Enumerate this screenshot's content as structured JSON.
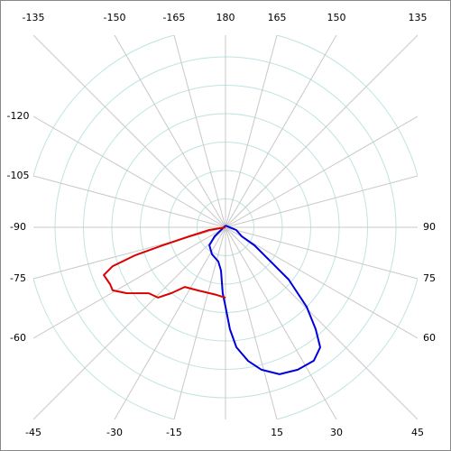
{
  "chart_data": {
    "type": "polar",
    "thetaticks": [
      -165,
      -150,
      -135,
      -120,
      -105,
      -90,
      -75,
      -60,
      -45,
      -30,
      -15,
      15,
      30,
      45,
      60,
      75,
      90,
      135,
      150,
      165,
      180
    ],
    "thetagrid_step": 15,
    "rlim": [
      0,
      7
    ],
    "rticks": [
      1,
      2,
      3,
      4,
      5,
      6,
      7
    ],
    "series": [
      {
        "color": "#0000dd",
        "theta": [
          180,
          76,
          61,
          58,
          52.8,
          50.4,
          45.6,
          41.5,
          38.3,
          33.5,
          26.9,
          20.2,
          14.2,
          9.6,
          5.2,
          2.5,
          0,
          -2.4,
          -5.9,
          -11.9,
          -26.6,
          -42,
          -50.2,
          -59,
          180
        ],
        "values": [
          0.06,
          0.39,
          0.65,
          1.2,
          2.0,
          2.89,
          4.0,
          4.79,
          5.38,
          5.63,
          5.62,
          5.51,
          5.17,
          4.77,
          4.24,
          3.59,
          2.79,
          2.32,
          1.53,
          1.23,
          1.06,
          0.85,
          0.5,
          0.18,
          0.06
        ]
      },
      {
        "color": "#dd0000",
        "theta": [
          -90,
          -80.5,
          -76,
          -74,
          -72.8,
          -71,
          -68.6,
          -63.8,
          -60.8,
          -56.4,
          -49.3,
          -43.9,
          -39.4,
          -34.3,
          -23.2,
          -7.6,
          0
        ],
        "values": [
          0,
          0.58,
          1.31,
          2.31,
          3.32,
          4.2,
          4.6,
          4.53,
          4.55,
          4.19,
          3.56,
          3.43,
          3.0,
          2.54,
          2.42,
          2.4,
          2.48
        ]
      }
    ]
  }
}
